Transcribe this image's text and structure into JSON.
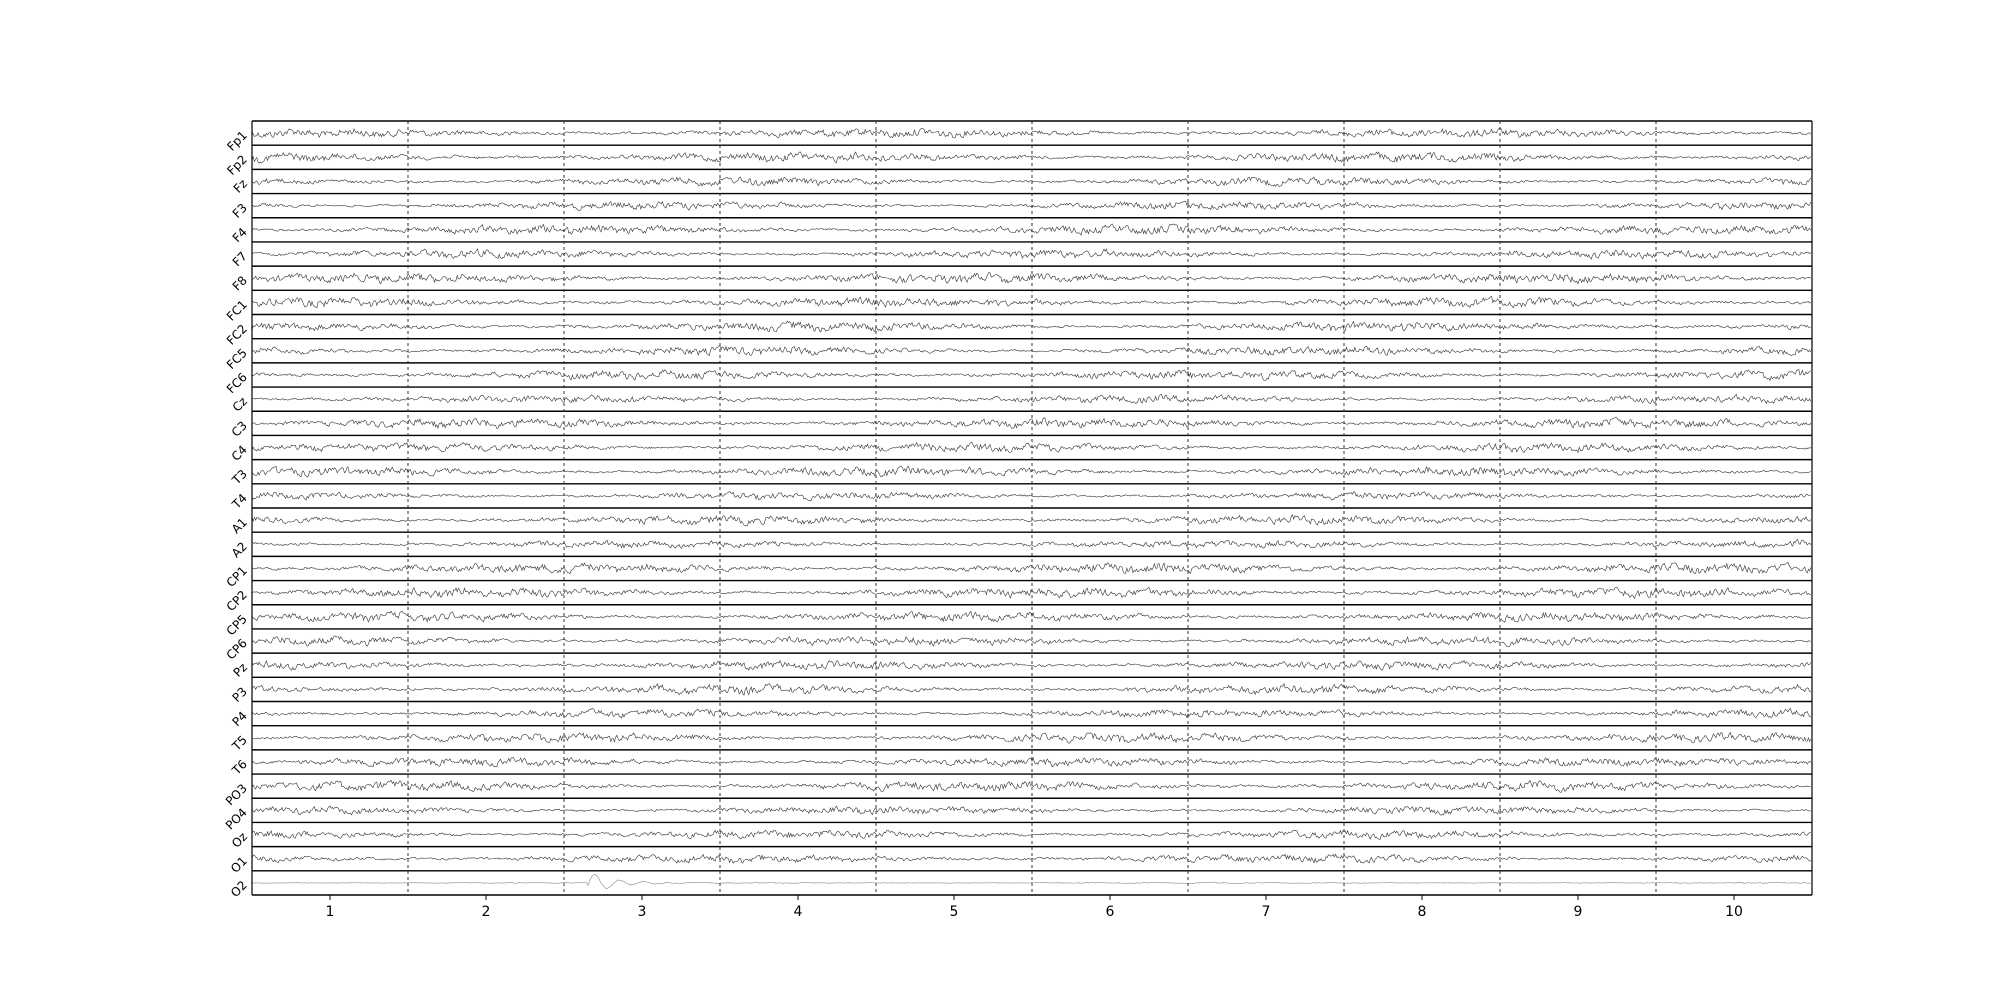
{
  "chart_data": {
    "type": "line",
    "title": "",
    "xlabel": "",
    "ylabel": "",
    "xlim": [
      0.5,
      10.5
    ],
    "xticks": [
      "1",
      "2",
      "3",
      "4",
      "5",
      "6",
      "7",
      "8",
      "9",
      "10"
    ],
    "epoch_boundaries": [
      1.5,
      2.5,
      3.5,
      4.5,
      5.5,
      6.5,
      7.5,
      8.5,
      9.5
    ],
    "grid": false,
    "legend": "none",
    "channels": [
      "Fp1",
      "Fp2",
      "Fz",
      "F3",
      "F4",
      "F7",
      "F8",
      "FC1",
      "FC2",
      "FC5",
      "FC6",
      "Cz",
      "C3",
      "C4",
      "T3",
      "T4",
      "A1",
      "A2",
      "CP1",
      "CP2",
      "CP5",
      "CP6",
      "Pz",
      "P3",
      "P4",
      "T5",
      "T6",
      "PO3",
      "PO4",
      "Oz",
      "O1",
      "O2"
    ],
    "series_style": {
      "trace_color": "#333333",
      "last_channel_color": "#888888"
    },
    "notable_events": [
      {
        "channel": "O2",
        "x": 2.7,
        "description": "transient deflection"
      }
    ]
  }
}
